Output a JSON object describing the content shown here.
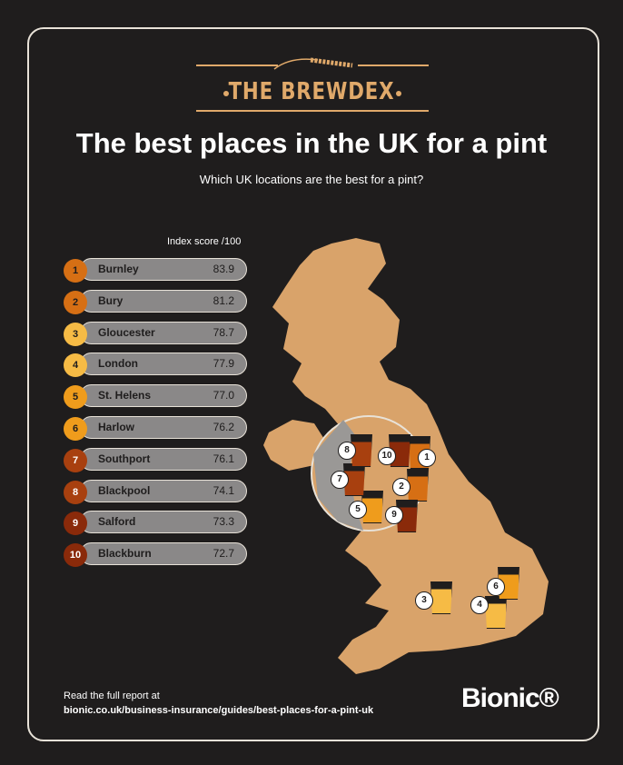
{
  "brand": {
    "logo_text": "THE BREWDEX",
    "footer_logo": "Bionic®"
  },
  "title": "The best places in the UK for a pint",
  "subtitle": "Which UK locations are the best for a pint?",
  "index_label": "Index score /100",
  "rankings": [
    {
      "rank": "1",
      "name": "Burnley",
      "score": "83.9",
      "color": "#d66f14",
      "text": "#1f1d1d"
    },
    {
      "rank": "2",
      "name": "Bury",
      "score": "81.2",
      "color": "#d66f14",
      "text": "#1f1d1d"
    },
    {
      "rank": "3",
      "name": "Gloucester",
      "score": "78.7",
      "color": "#f6bb45",
      "text": "#1f1d1d"
    },
    {
      "rank": "4",
      "name": "London",
      "score": "77.9",
      "color": "#f6bb45",
      "text": "#1f1d1d"
    },
    {
      "rank": "5",
      "name": "St. Helens",
      "score": "77.0",
      "color": "#ef9c1c",
      "text": "#1f1d1d"
    },
    {
      "rank": "6",
      "name": "Harlow",
      "score": "76.2",
      "color": "#ef9c1c",
      "text": "#1f1d1d"
    },
    {
      "rank": "7",
      "name": "Southport",
      "score": "76.1",
      "color": "#a8400f",
      "text": "#ffffff"
    },
    {
      "rank": "8",
      "name": "Blackpool",
      "score": "74.1",
      "color": "#a8400f",
      "text": "#ffffff"
    },
    {
      "rank": "9",
      "name": "Salford",
      "score": "73.3",
      "color": "#8a2a0a",
      "text": "#ffffff"
    },
    {
      "rank": "10",
      "name": "Blackburn",
      "score": "72.7",
      "color": "#8a2a0a",
      "text": "#ffffff"
    }
  ],
  "map": {
    "land_color": "#d9a36a",
    "pins": [
      "1",
      "2",
      "3",
      "4",
      "5",
      "6",
      "7",
      "8",
      "9",
      "10"
    ]
  },
  "footer": {
    "line1": "Read the full report at",
    "line2": "bionic.co.uk/business-insurance/guides/best-places-for-a-pint-uk"
  }
}
